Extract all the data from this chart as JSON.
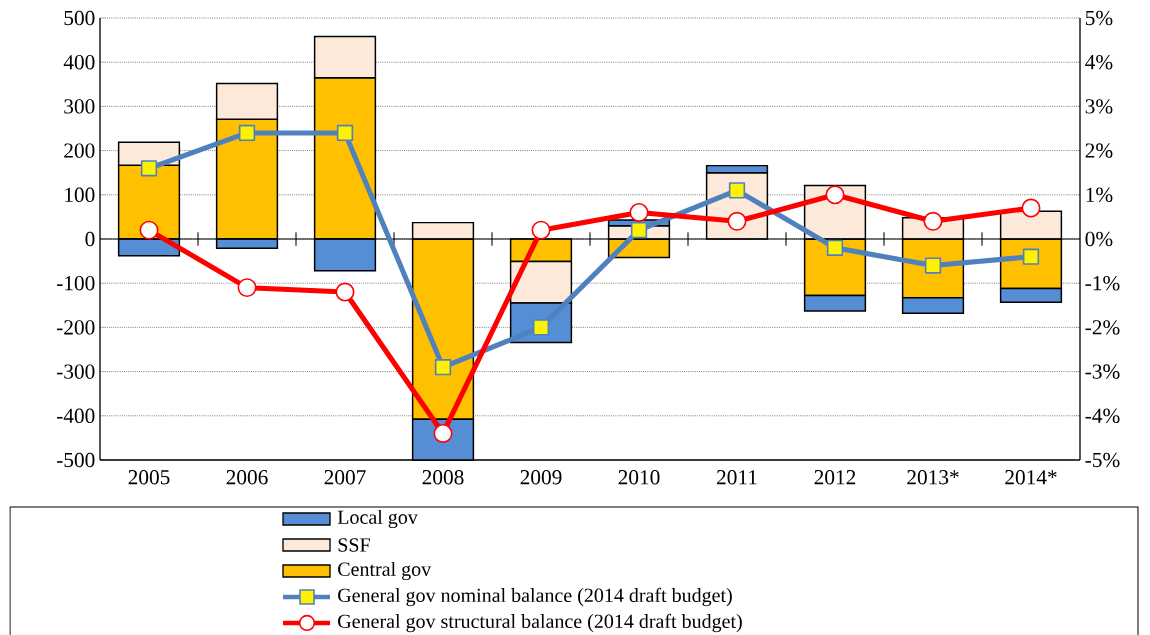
{
  "chart_data": {
    "type": "bar",
    "stacked": true,
    "grid": "y",
    "legend": "bottom",
    "categories": [
      "2005",
      "2006",
      "2007",
      "2008",
      "2009",
      "2010",
      "2011",
      "2012",
      "2013*",
      "2014*"
    ],
    "ylim": [
      -500,
      500
    ],
    "yticks": [
      -500,
      -400,
      -300,
      -200,
      -100,
      0,
      100,
      200,
      300,
      400,
      500
    ],
    "y2lim": [
      -5,
      5
    ],
    "y2ticks": [
      {
        "value": -5,
        "label": "-5%"
      },
      {
        "value": -4,
        "label": "-4%"
      },
      {
        "value": -3,
        "label": "-3%"
      },
      {
        "value": -2,
        "label": "-2%"
      },
      {
        "value": -1,
        "label": "-1%"
      },
      {
        "value": 0,
        "label": "0%"
      },
      {
        "value": 1,
        "label": "1%"
      },
      {
        "value": 2,
        "label": "2%"
      },
      {
        "value": 3,
        "label": "3%"
      },
      {
        "value": 4,
        "label": "4%"
      },
      {
        "value": 5,
        "label": "5%"
      }
    ],
    "series": [
      {
        "name": "Central gov",
        "color": "#ffc000",
        "values": [
          167,
          271,
          365,
          -408,
          -51,
          -42,
          0,
          -128,
          -133,
          -112
        ]
      },
      {
        "name": "SSF",
        "color": "#fde9d9",
        "values": [
          52,
          81,
          93,
          37,
          -94,
          30,
          150,
          121,
          48,
          63
        ]
      },
      {
        "name": "Local gov",
        "color": "#558ed5",
        "values": [
          -38,
          -21,
          -72,
          -92,
          -89,
          13,
          16,
          -35,
          -35,
          -31
        ]
      },
      {
        "name": "General gov nominal balance (2014 draft budget)",
        "type": "line",
        "axis": "y2",
        "marker": "square",
        "color": "#4f81bd",
        "values": [
          1.6,
          2.4,
          2.4,
          -2.9,
          -2.0,
          0.2,
          1.1,
          -0.2,
          -0.6,
          -0.4
        ]
      },
      {
        "name": "General gov structural balance (2014 draft budget)",
        "type": "line",
        "axis": "y2",
        "marker": "circle",
        "color": "#ff0000",
        "values": [
          0.2,
          -1.1,
          -1.2,
          -4.4,
          0.2,
          0.6,
          0.4,
          1.0,
          0.4,
          0.7
        ]
      }
    ]
  }
}
